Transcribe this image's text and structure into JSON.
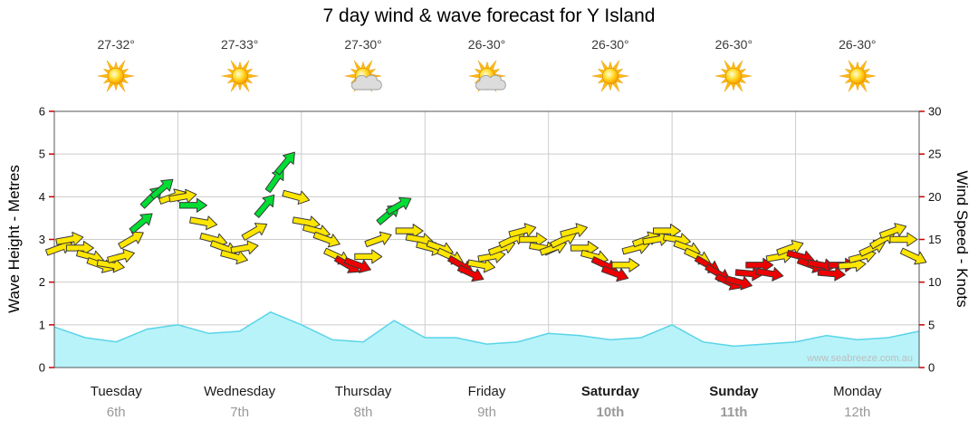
{
  "chart_data": {
    "type": "area",
    "title": "7 day wind & wave forecast for Y Island",
    "watermark": "www.seabreeze.com.au",
    "x_unit": "hours",
    "x_range": [
      0,
      168
    ],
    "left_axis": {
      "label": "Wave Height - Metres",
      "min": 0,
      "max": 6,
      "step": 1
    },
    "right_axis": {
      "label": "Wind Speed - Knots",
      "min": 0,
      "max": 30,
      "step": 5
    },
    "days": [
      {
        "name": "Tuesday",
        "date": "6th",
        "temp": "27-32°",
        "icon": "sun",
        "bold": false
      },
      {
        "name": "Wednesday",
        "date": "7th",
        "temp": "27-33°",
        "icon": "sun",
        "bold": false
      },
      {
        "name": "Thursday",
        "date": "8th",
        "temp": "27-30°",
        "icon": "sun-cloud",
        "bold": false
      },
      {
        "name": "Friday",
        "date": "9th",
        "temp": "26-30°",
        "icon": "sun-cloud",
        "bold": false
      },
      {
        "name": "Saturday",
        "date": "10th",
        "temp": "26-30°",
        "icon": "sun",
        "bold": true
      },
      {
        "name": "Sunday",
        "date": "11th",
        "temp": "26-30°",
        "icon": "sun",
        "bold": true
      },
      {
        "name": "Monday",
        "date": "12th",
        "temp": "26-30°",
        "icon": "sun",
        "bold": false
      }
    ],
    "wave_series": {
      "name": "Wave Height (metres)",
      "x": [
        0,
        6,
        12,
        18,
        24,
        30,
        36,
        42,
        48,
        54,
        60,
        66,
        72,
        78,
        84,
        90,
        96,
        102,
        108,
        114,
        120,
        126,
        132,
        138,
        144,
        150,
        156,
        162,
        168
      ],
      "values": [
        0.95,
        0.7,
        0.6,
        0.9,
        1.0,
        0.8,
        0.85,
        1.3,
        1.0,
        0.65,
        0.6,
        1.1,
        0.7,
        0.7,
        0.55,
        0.6,
        0.8,
        0.75,
        0.65,
        0.7,
        1.0,
        0.6,
        0.5,
        0.55,
        0.6,
        0.75,
        0.65,
        0.7,
        0.85
      ]
    },
    "wind_series": {
      "name": "Wind Speed (knots)",
      "t": [
        1,
        3,
        5,
        7,
        9,
        11,
        13,
        15,
        17,
        19,
        21,
        23,
        25,
        27,
        29,
        31,
        33,
        35,
        37,
        39,
        41,
        43,
        45,
        47,
        49,
        51,
        53,
        55,
        57,
        59,
        61,
        63,
        65,
        67,
        69,
        71,
        73,
        75,
        77,
        79,
        81,
        83,
        85,
        87,
        89,
        91,
        93,
        95,
        97,
        99,
        101,
        103,
        105,
        107,
        109,
        111,
        113,
        115,
        117,
        119,
        121,
        123,
        125,
        127,
        129,
        131,
        133,
        135,
        137,
        139,
        141,
        143,
        145,
        147,
        149,
        151,
        153,
        155,
        157,
        159,
        161,
        163,
        165,
        167
      ],
      "knots": [
        14,
        15,
        14,
        13,
        12,
        12,
        13,
        15,
        17,
        20,
        21,
        20,
        20,
        19,
        17,
        15,
        14,
        13,
        14,
        16,
        19,
        22,
        24,
        20,
        17,
        16,
        15,
        13,
        12,
        12,
        13,
        15,
        18,
        19,
        16,
        15,
        14,
        14,
        13,
        12,
        11,
        12,
        13,
        14,
        15,
        16,
        15,
        14,
        14,
        15,
        16,
        14,
        13,
        12,
        11,
        12,
        14,
        15,
        15,
        16,
        15,
        14,
        13,
        12,
        11,
        10,
        10,
        11,
        12,
        11,
        13,
        14,
        13,
        12,
        12,
        11,
        12,
        12,
        13,
        14,
        15,
        16,
        15,
        13
      ],
      "angle": [
        -20,
        -10,
        0,
        15,
        20,
        10,
        -15,
        -30,
        -40,
        -45,
        -40,
        -20,
        -10,
        0,
        10,
        15,
        20,
        15,
        -10,
        -30,
        -50,
        -55,
        -50,
        15,
        10,
        15,
        20,
        25,
        30,
        20,
        0,
        -20,
        -40,
        -30,
        0,
        10,
        15,
        20,
        25,
        30,
        25,
        10,
        -10,
        -20,
        -25,
        -15,
        0,
        10,
        -20,
        -25,
        -15,
        0,
        15,
        25,
        20,
        0,
        -15,
        -20,
        -10,
        0,
        10,
        20,
        25,
        30,
        30,
        25,
        15,
        5,
        0,
        10,
        -10,
        -20,
        15,
        20,
        10,
        5,
        0,
        -5,
        -15,
        -25,
        -30,
        -20,
        0,
        25
      ],
      "color": [
        "y",
        "y",
        "y",
        "y",
        "y",
        "y",
        "y",
        "y",
        "g",
        "g",
        "g",
        "y",
        "y",
        "g",
        "y",
        "y",
        "y",
        "y",
        "y",
        "y",
        "g",
        "g",
        "g",
        "y",
        "y",
        "y",
        "y",
        "y",
        "r",
        "r",
        "y",
        "y",
        "g",
        "g",
        "y",
        "y",
        "y",
        "y",
        "y",
        "r",
        "r",
        "y",
        "y",
        "y",
        "y",
        "y",
        "y",
        "y",
        "y",
        "y",
        "y",
        "y",
        "y",
        "r",
        "r",
        "y",
        "y",
        "y",
        "y",
        "y",
        "y",
        "y",
        "y",
        "r",
        "r",
        "r",
        "r",
        "r",
        "r",
        "r",
        "y",
        "y",
        "r",
        "r",
        "r",
        "r",
        "r",
        "y",
        "y",
        "y",
        "y",
        "y",
        "y",
        "y"
      ]
    },
    "colors": {
      "arrow_yellow": "#ffe600",
      "arrow_green": "#00dd33",
      "arrow_red": "#ee0000",
      "arrow_outline": "#3a3a3a",
      "grid": "#cccccc",
      "frame": "#555555",
      "tick": "#cc0000",
      "wave_fill": "#b8f3f9",
      "wave_line": "#59d4e8",
      "day_name": "#1a1a1a",
      "day_date": "#999999",
      "watermark_color": "#bdbdbd"
    }
  }
}
